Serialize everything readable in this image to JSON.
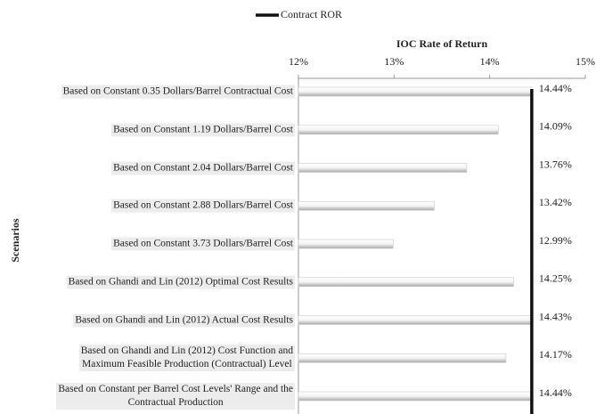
{
  "chart_data": {
    "type": "bar",
    "orientation": "horizontal",
    "x_label": "IOC Rate of Return",
    "y_label": "Scenarios",
    "categories": [
      "Based on Constant 0.35 Dollars/Barrel Contractual Cost",
      "Based on Constant 1.19 Dollars/Barrel Cost",
      "Based on Constant 2.04 Dollars/Barrel Cost",
      "Based on Constant 2.88 Dollars/Barrel Cost",
      "Based on Constant 3.73 Dollars/Barrel Cost",
      "Based on Ghandi and Lin (2012) Optimal Cost Results",
      "Based on Ghandi and Lin (2012) Actual Cost Results",
      "Based on Ghandi and Lin (2012) Cost Function and\nMaximum Feasible Production (Contractual) Level",
      "Based on Constant per Barrel Cost Levels' Range and the\nContractual Production"
    ],
    "values": [
      14.44,
      14.09,
      13.76,
      13.42,
      12.99,
      14.25,
      14.43,
      14.17,
      14.44
    ],
    "value_labels": [
      "14.44%",
      "14.09%",
      "13.76%",
      "13.42%",
      "12.99%",
      "14.25%",
      "14.43%",
      "14.17%",
      "14.44%"
    ],
    "color": "#c8c8c8",
    "reference_line": {
      "name": "Contract ROR",
      "value": 14.44,
      "color": "#111111"
    },
    "xlim": [
      12,
      15
    ],
    "xticks": [
      {
        "value": 12,
        "label": "12%"
      },
      {
        "value": 13,
        "label": "13%"
      },
      {
        "value": 14,
        "label": "14%"
      },
      {
        "value": 15,
        "label": "15%"
      }
    ]
  }
}
